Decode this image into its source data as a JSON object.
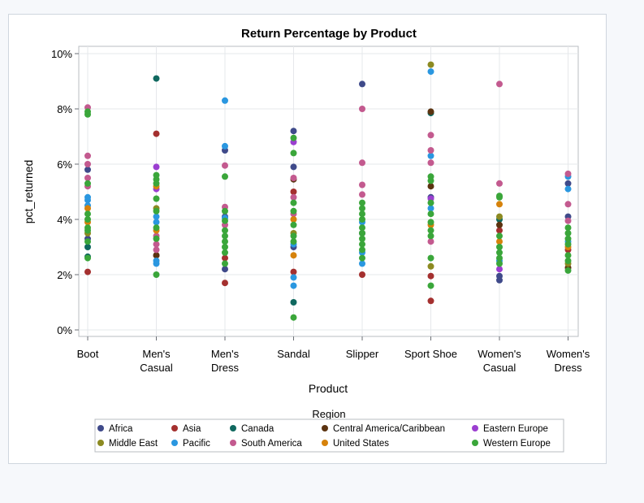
{
  "chart_data": {
    "type": "scatter",
    "title": "Return Percentage by Product",
    "xlabel": "Product",
    "ylabel": "pct_returned",
    "ylim": [
      0,
      10.3
    ],
    "y_ticks": [
      "0%",
      "2%",
      "4%",
      "6%",
      "8%",
      "10%"
    ],
    "y_tick_values": [
      0,
      2,
      4,
      6,
      8,
      10
    ],
    "grid": true,
    "legend_position": "bottom",
    "legend_title": "Region",
    "categories": [
      [
        "Boot"
      ],
      [
        "Men's",
        "Casual"
      ],
      [
        "Men's",
        "Dress"
      ],
      [
        "Sandal"
      ],
      [
        "Slipper"
      ],
      [
        "Sport Shoe"
      ],
      [
        "Women's",
        "Casual"
      ],
      [
        "Women's",
        "Dress"
      ]
    ],
    "series": [
      {
        "name": "Africa",
        "color": "#3f4a8a",
        "points": [
          [
            0,
            5.8
          ],
          [
            0,
            3.3
          ],
          [
            2,
            6.5
          ],
          [
            2,
            4.1
          ],
          [
            2,
            2.2
          ],
          [
            3,
            7.2
          ],
          [
            3,
            5.9
          ],
          [
            3,
            3.0
          ],
          [
            4,
            8.9
          ],
          [
            4,
            3.5
          ],
          [
            5,
            4.8
          ],
          [
            6,
            1.8
          ],
          [
            6,
            1.95
          ],
          [
            7,
            5.3
          ],
          [
            7,
            4.1
          ]
        ]
      },
      {
        "name": "Asia",
        "color": "#a4302f",
        "points": [
          [
            0,
            2.1
          ],
          [
            1,
            7.1
          ],
          [
            1,
            2.7
          ],
          [
            2,
            1.7
          ],
          [
            2,
            2.6
          ],
          [
            3,
            2.1
          ],
          [
            3,
            5.0
          ],
          [
            4,
            2.0
          ],
          [
            5,
            1.05
          ],
          [
            5,
            1.95
          ],
          [
            6,
            3.6
          ],
          [
            7,
            2.9
          ]
        ]
      },
      {
        "name": "Canada",
        "color": "#10685f",
        "points": [
          [
            0,
            2.65
          ],
          [
            0,
            3.0
          ],
          [
            1,
            9.1
          ],
          [
            3,
            1.0
          ],
          [
            5,
            7.85
          ],
          [
            6,
            4.0
          ]
        ]
      },
      {
        "name": "Central America/Caribbean",
        "color": "#5b3310",
        "points": [
          [
            1,
            2.7
          ],
          [
            3,
            5.45
          ],
          [
            5,
            7.9
          ],
          [
            5,
            5.2
          ],
          [
            6,
            3.8
          ],
          [
            7,
            2.25
          ]
        ]
      },
      {
        "name": "Eastern Europe",
        "color": "#9b3ed0",
        "points": [
          [
            1,
            5.9
          ],
          [
            1,
            5.1
          ],
          [
            3,
            6.8
          ],
          [
            5,
            4.75
          ],
          [
            6,
            2.2
          ]
        ]
      },
      {
        "name": "Middle East",
        "color": "#8c8a21",
        "points": [
          [
            0,
            3.5
          ],
          [
            1,
            4.4
          ],
          [
            3,
            3.5
          ],
          [
            5,
            9.6
          ],
          [
            5,
            2.3
          ],
          [
            6,
            4.1
          ],
          [
            7,
            2.4
          ]
        ]
      },
      {
        "name": "Pacific",
        "color": "#2a97e0",
        "points": [
          [
            0,
            4.8
          ],
          [
            0,
            4.7
          ],
          [
            0,
            4.5
          ],
          [
            1,
            2.4
          ],
          [
            1,
            2.5
          ],
          [
            1,
            3.9
          ],
          [
            1,
            4.1
          ],
          [
            2,
            8.3
          ],
          [
            2,
            6.65
          ],
          [
            2,
            4.05
          ],
          [
            3,
            1.9
          ],
          [
            3,
            1.6
          ],
          [
            3,
            3.1
          ],
          [
            4,
            3.9
          ],
          [
            4,
            2.4
          ],
          [
            4,
            2.8
          ],
          [
            5,
            9.35
          ],
          [
            5,
            6.3
          ],
          [
            5,
            4.4
          ],
          [
            6,
            2.5
          ],
          [
            7,
            5.55
          ],
          [
            7,
            5.1
          ],
          [
            7,
            3.2
          ]
        ]
      },
      {
        "name": "South America",
        "color": "#c35a8f",
        "points": [
          [
            0,
            8.05
          ],
          [
            0,
            6.3
          ],
          [
            0,
            6.0
          ],
          [
            0,
            5.5
          ],
          [
            0,
            5.2
          ],
          [
            1,
            3.1
          ],
          [
            1,
            3.4
          ],
          [
            1,
            2.9
          ],
          [
            2,
            5.95
          ],
          [
            2,
            4.45
          ],
          [
            2,
            3.8
          ],
          [
            3,
            5.5
          ],
          [
            3,
            4.8
          ],
          [
            3,
            4.2
          ],
          [
            4,
            8.0
          ],
          [
            4,
            6.05
          ],
          [
            4,
            5.25
          ],
          [
            4,
            4.9
          ],
          [
            5,
            7.05
          ],
          [
            5,
            6.5
          ],
          [
            5,
            6.05
          ],
          [
            5,
            3.2
          ],
          [
            6,
            8.9
          ],
          [
            6,
            5.3
          ],
          [
            7,
            5.65
          ],
          [
            7,
            4.55
          ],
          [
            7,
            3.95
          ]
        ]
      },
      {
        "name": "United States",
        "color": "#d6820b",
        "points": [
          [
            0,
            4.4
          ],
          [
            0,
            3.9
          ],
          [
            1,
            5.2
          ],
          [
            1,
            3.6
          ],
          [
            3,
            2.7
          ],
          [
            3,
            4.0
          ],
          [
            5,
            3.8
          ],
          [
            6,
            4.55
          ],
          [
            6,
            3.2
          ],
          [
            7,
            3.0
          ]
        ]
      },
      {
        "name": "Western Europe",
        "color": "#3aa63a",
        "points": [
          [
            0,
            7.8
          ],
          [
            0,
            7.9
          ],
          [
            0,
            5.3
          ],
          [
            0,
            4.2
          ],
          [
            0,
            4.0
          ],
          [
            0,
            3.7
          ],
          [
            0,
            3.6
          ],
          [
            0,
            3.2
          ],
          [
            0,
            2.6
          ],
          [
            1,
            5.6
          ],
          [
            1,
            5.45
          ],
          [
            1,
            5.3
          ],
          [
            1,
            4.75
          ],
          [
            1,
            4.3
          ],
          [
            1,
            3.7
          ],
          [
            1,
            3.3
          ],
          [
            1,
            2.0
          ],
          [
            2,
            5.55
          ],
          [
            2,
            4.3
          ],
          [
            2,
            3.95
          ],
          [
            2,
            3.6
          ],
          [
            2,
            3.4
          ],
          [
            2,
            3.2
          ],
          [
            2,
            3.0
          ],
          [
            2,
            2.8
          ],
          [
            2,
            2.4
          ],
          [
            3,
            6.95
          ],
          [
            3,
            6.4
          ],
          [
            3,
            4.6
          ],
          [
            3,
            4.3
          ],
          [
            3,
            3.8
          ],
          [
            3,
            3.4
          ],
          [
            3,
            3.2
          ],
          [
            3,
            0.45
          ],
          [
            4,
            4.6
          ],
          [
            4,
            4.4
          ],
          [
            4,
            4.2
          ],
          [
            4,
            4.0
          ],
          [
            4,
            3.7
          ],
          [
            4,
            3.5
          ],
          [
            4,
            3.3
          ],
          [
            4,
            3.1
          ],
          [
            4,
            2.9
          ],
          [
            4,
            2.6
          ],
          [
            5,
            5.55
          ],
          [
            5,
            5.4
          ],
          [
            5,
            4.6
          ],
          [
            5,
            4.2
          ],
          [
            5,
            3.9
          ],
          [
            5,
            3.6
          ],
          [
            5,
            3.4
          ],
          [
            5,
            2.6
          ],
          [
            5,
            1.6
          ],
          [
            6,
            4.85
          ],
          [
            6,
            4.8
          ],
          [
            6,
            3.4
          ],
          [
            6,
            3.0
          ],
          [
            6,
            2.8
          ],
          [
            6,
            2.6
          ],
          [
            6,
            2.4
          ],
          [
            7,
            3.7
          ],
          [
            7,
            3.5
          ],
          [
            7,
            3.3
          ],
          [
            7,
            3.1
          ],
          [
            7,
            2.7
          ],
          [
            7,
            2.5
          ],
          [
            7,
            2.15
          ]
        ]
      }
    ]
  }
}
